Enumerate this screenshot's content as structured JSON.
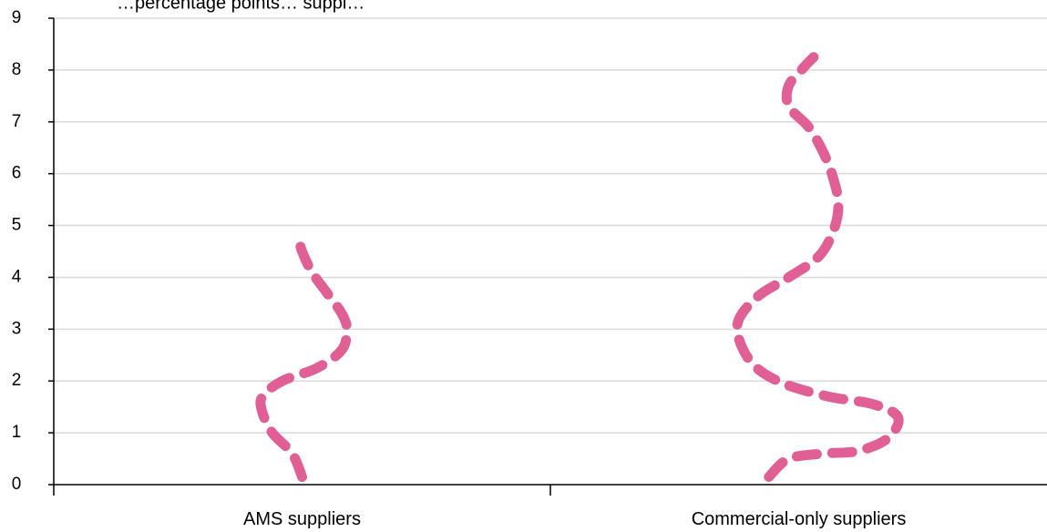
{
  "chart_data": {
    "type": "line",
    "title": "…percentage points… suppl…",
    "categories": [
      "AMS suppliers",
      "Commercial-only suppliers"
    ],
    "y_ticks": [
      "0",
      "1",
      "2",
      "3",
      "4",
      "5",
      "6",
      "7",
      "8",
      "9"
    ],
    "ylim": [
      0,
      9
    ],
    "grid": true,
    "line_style": "dashed",
    "colors": {
      "series": "#e06096",
      "grid": "#d9d9d9",
      "axis": "#000000"
    },
    "series": [
      {
        "category": "AMS suppliers",
        "points": [
          {
            "x": 0.0,
            "y": 0.15
          },
          {
            "x": -0.02,
            "y": 0.6
          },
          {
            "x": -0.06,
            "y": 1.0
          },
          {
            "x": -0.08,
            "y": 1.4
          },
          {
            "x": -0.08,
            "y": 1.7
          },
          {
            "x": -0.04,
            "y": 2.0
          },
          {
            "x": 0.03,
            "y": 2.25
          },
          {
            "x": 0.08,
            "y": 2.6
          },
          {
            "x": 0.09,
            "y": 3.0
          },
          {
            "x": 0.08,
            "y": 3.3
          },
          {
            "x": 0.05,
            "y": 3.7
          },
          {
            "x": 0.02,
            "y": 4.1
          },
          {
            "x": 0.0,
            "y": 4.5
          },
          {
            "x": -0.01,
            "y": 4.85
          }
        ]
      },
      {
        "category": "Commercial-only suppliers",
        "points": [
          {
            "x": -0.06,
            "y": 0.15
          },
          {
            "x": -0.02,
            "y": 0.5
          },
          {
            "x": 0.05,
            "y": 0.6
          },
          {
            "x": 0.12,
            "y": 0.65
          },
          {
            "x": 0.18,
            "y": 0.9
          },
          {
            "x": 0.2,
            "y": 1.3
          },
          {
            "x": 0.15,
            "y": 1.55
          },
          {
            "x": 0.06,
            "y": 1.7
          },
          {
            "x": -0.03,
            "y": 1.95
          },
          {
            "x": -0.09,
            "y": 2.3
          },
          {
            "x": -0.12,
            "y": 2.8
          },
          {
            "x": -0.12,
            "y": 3.2
          },
          {
            "x": -0.08,
            "y": 3.65
          },
          {
            "x": -0.02,
            "y": 4.0
          },
          {
            "x": 0.04,
            "y": 4.4
          },
          {
            "x": 0.07,
            "y": 4.9
          },
          {
            "x": 0.08,
            "y": 5.4
          },
          {
            "x": 0.07,
            "y": 5.9
          },
          {
            "x": 0.05,
            "y": 6.4
          },
          {
            "x": 0.02,
            "y": 6.9
          },
          {
            "x": -0.02,
            "y": 7.3
          },
          {
            "x": -0.02,
            "y": 7.7
          },
          {
            "x": 0.01,
            "y": 8.05
          },
          {
            "x": 0.03,
            "y": 8.25
          }
        ]
      }
    ]
  }
}
